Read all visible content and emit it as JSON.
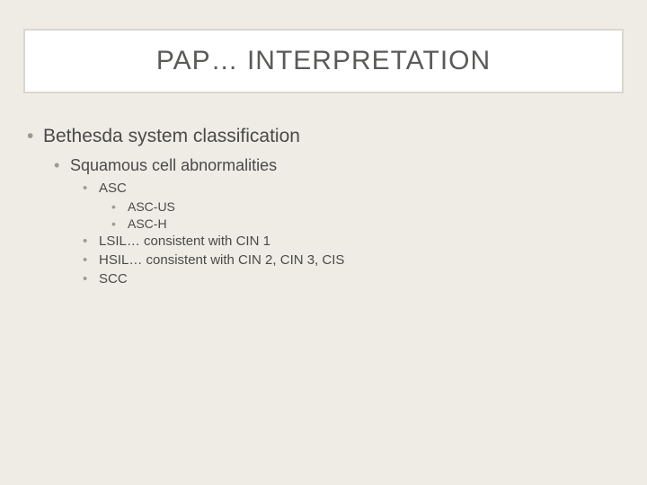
{
  "colors": {
    "slide_bg": "#eeece5",
    "title_box_bg": "#ffffff",
    "title_box_border": "#d9d6cd",
    "text_color": "#5a5a58",
    "bullet_color": "#9c9a92"
  },
  "typography": {
    "title_fontsize": 30,
    "lvl1_fontsize": 21,
    "lvl2_fontsize": 18,
    "lvl3_fontsize": 15,
    "lvl4_fontsize": 14,
    "font_family": "Arial"
  },
  "title": "PAP… INTERPRETATION",
  "bullets": {
    "lvl1": "Bethesda system classification",
    "lvl2": "Squamous cell abnormalities",
    "lvl3_0": "ASC",
    "lvl4_0": "ASC-US",
    "lvl4_1": "ASC-H",
    "lvl3_1": "LSIL… consistent with CIN 1",
    "lvl3_2": "HSIL… consistent with CIN 2, CIN 3, CIS",
    "lvl3_3": "SCC"
  }
}
